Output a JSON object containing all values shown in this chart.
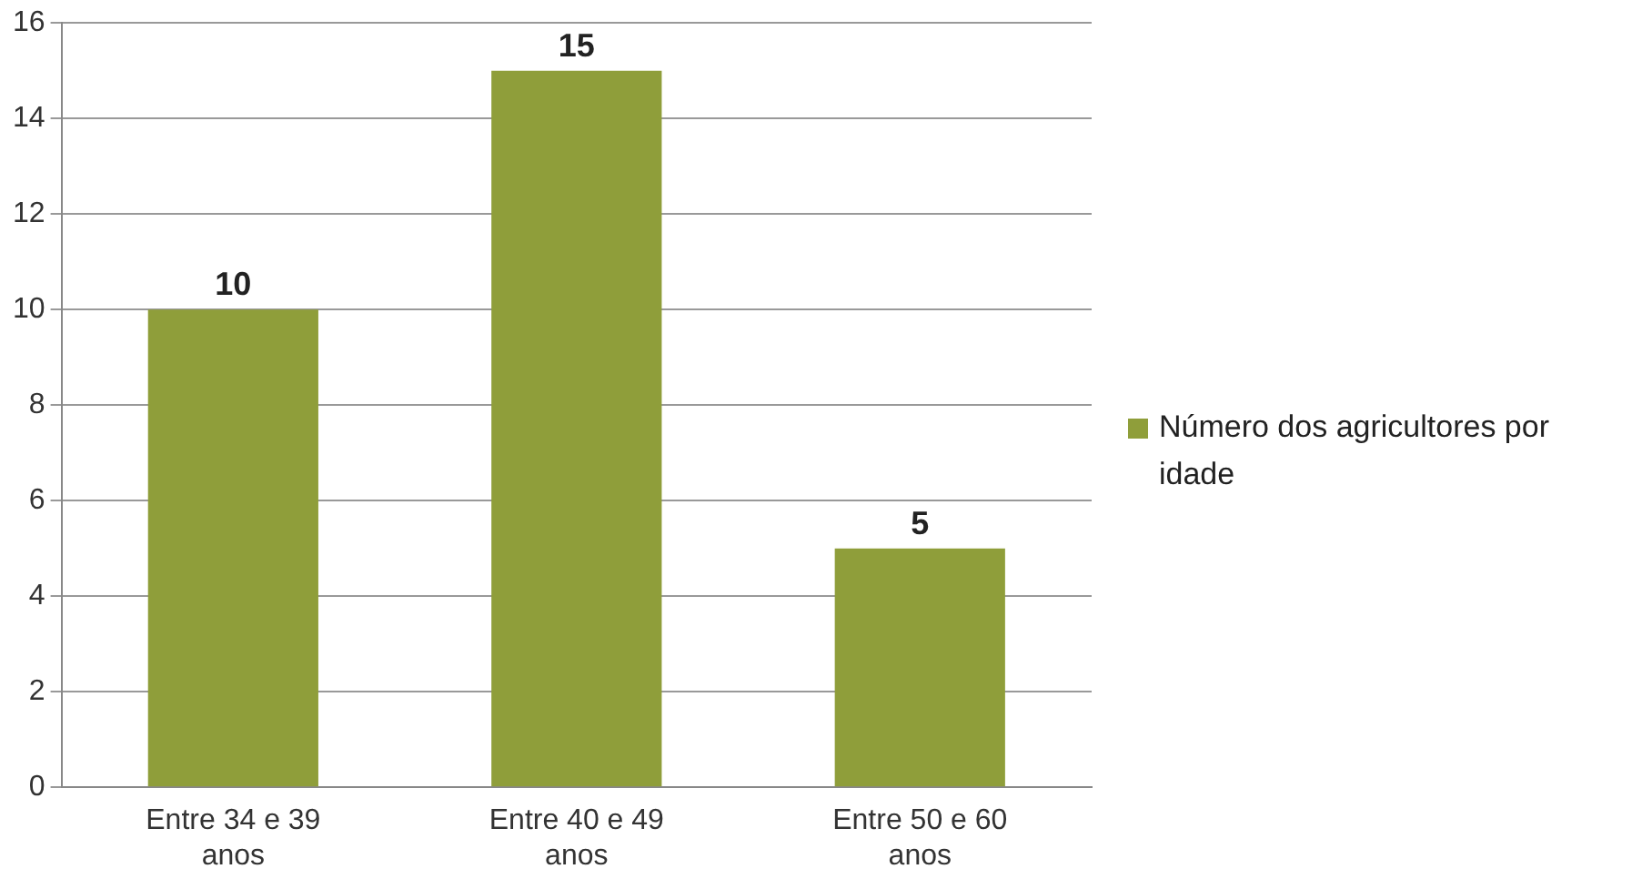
{
  "chart_data": {
    "type": "bar",
    "categories": [
      "Entre 34 e 39 anos",
      "Entre 40 e 49 anos",
      "Entre 50 e 60 anos"
    ],
    "series": [
      {
        "name": "Número dos agricultores por idade",
        "color": "#8f9e3a",
        "values": [
          10,
          15,
          5
        ]
      }
    ],
    "ylim": [
      0,
      16
    ],
    "yticks": [
      0,
      2,
      4,
      6,
      8,
      10,
      12,
      14,
      16
    ],
    "grid": "y",
    "legend": "right",
    "data_labels": true
  }
}
